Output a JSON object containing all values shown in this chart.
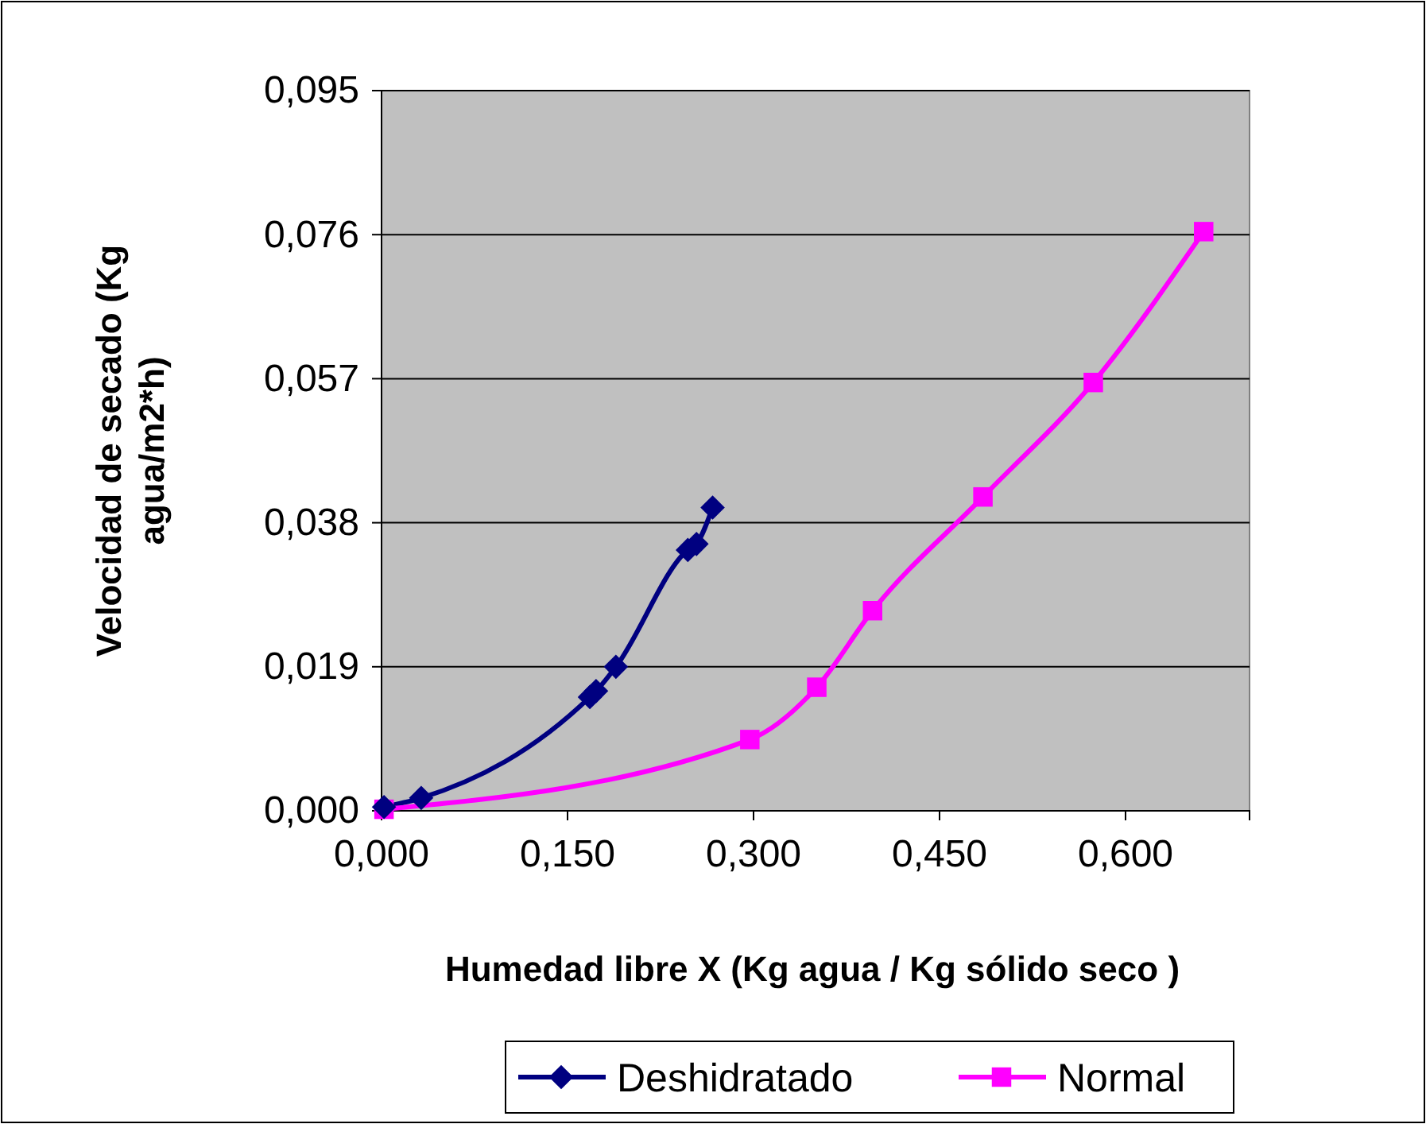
{
  "chart_data": {
    "type": "line",
    "xlabel": "Humedad libre X (Kg agua / Kg sólido seco )",
    "ylabel": "Velocidad de secado (Kg agua/m2*h)",
    "xlim": [
      0,
      0.7
    ],
    "xticks": [
      {
        "value": 0,
        "label": "0,000"
      },
      {
        "value": 0.15,
        "label": "0,150"
      },
      {
        "value": 0.3,
        "label": "0,300"
      },
      {
        "value": 0.45,
        "label": "0,450"
      },
      {
        "value": 0.6,
        "label": "0,600"
      }
    ],
    "ylim": [
      0,
      0.095
    ],
    "yticks": [
      {
        "value": 0,
        "label": "0,000"
      },
      {
        "value": 0.019,
        "label": "0,019"
      },
      {
        "value": 0.038,
        "label": "0,038"
      },
      {
        "value": 0.057,
        "label": "0,057"
      },
      {
        "value": 0.076,
        "label": "0,076"
      },
      {
        "value": 0.095,
        "label": "0,095"
      }
    ],
    "grid": "y",
    "legend": "bottom",
    "series": [
      {
        "name": "Deshidratado",
        "color": "#000080",
        "marker": "diamond",
        "x": [
          0.002,
          0.032,
          0.168,
          0.173,
          0.189,
          0.247,
          0.254,
          0.267
        ],
        "values": [
          0.0005,
          0.0017,
          0.015,
          0.0158,
          0.019,
          0.0344,
          0.0352,
          0.04
        ]
      },
      {
        "name": "Normal",
        "color": "#ff00ff",
        "marker": "square",
        "x": [
          0.002,
          0.297,
          0.351,
          0.396,
          0.485,
          0.574,
          0.663
        ],
        "values": [
          0.0002,
          0.0094,
          0.0163,
          0.0264,
          0.0414,
          0.0565,
          0.0764
        ]
      }
    ]
  }
}
